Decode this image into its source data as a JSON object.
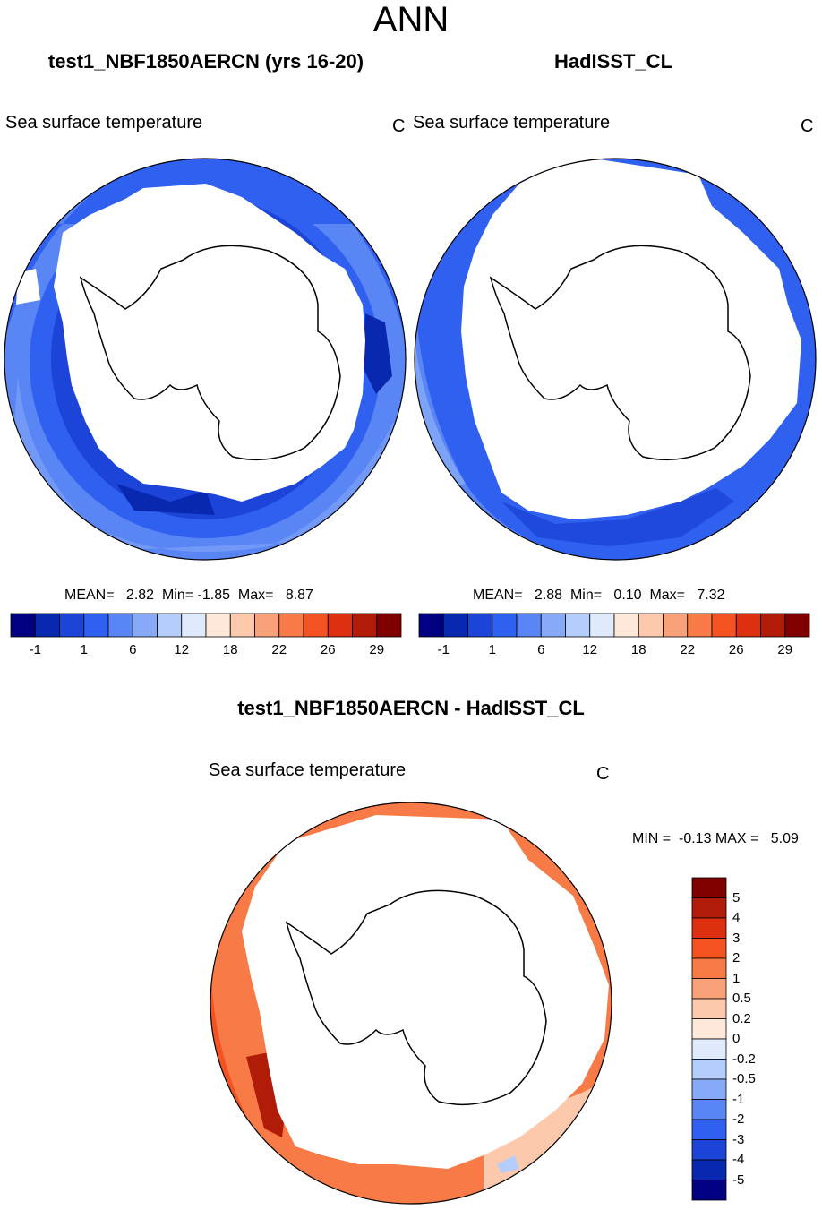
{
  "title": "ANN",
  "panels": [
    {
      "title": "test1_NBF1850AERCN (yrs 16-20)",
      "field": "Sea surface temperature",
      "units": "C",
      "stats": {
        "mean_label": "MEAN=",
        "mean": "2.82",
        "min_label": "Min=",
        "min": "-1.85",
        "max_label": "Max=",
        "max": "8.87"
      }
    },
    {
      "title": "HadISST_CL",
      "field": "Sea surface temperature",
      "units": "C",
      "stats": {
        "mean_label": "MEAN=",
        "mean": "2.88",
        "min_label": "Min=",
        "min": "0.10",
        "max_label": "Max=",
        "max": "7.32"
      }
    }
  ],
  "colorbar_top": {
    "colors": [
      "#000080",
      "#0828b0",
      "#1c44d8",
      "#3060f0",
      "#5a86f5",
      "#86aaf7",
      "#b4cdfa",
      "#dfeafd",
      "#fde8da",
      "#fcc9ad",
      "#f9a279",
      "#f77a47",
      "#f45321",
      "#dc3010",
      "#b01c08",
      "#800000"
    ],
    "ticks": [
      "-1",
      "1",
      "6",
      "12",
      "18",
      "22",
      "26",
      "29"
    ]
  },
  "diff": {
    "title": "test1_NBF1850AERCN - HadISST_CL",
    "field": "Sea surface temperature",
    "units": "C",
    "minmax": "MIN =  -0.13 MAX =   5.09",
    "colorbar": {
      "colors": [
        "#800000",
        "#b01c08",
        "#dc3010",
        "#f45321",
        "#f77a47",
        "#f9a279",
        "#fcc9ad",
        "#fde8da",
        "#dfeafd",
        "#b4cdfa",
        "#86aaf7",
        "#5a86f5",
        "#3060f0",
        "#1c44d8",
        "#0828b0",
        "#000080"
      ],
      "ticks": [
        "5",
        "4",
        "3",
        "2",
        "1",
        "0.5",
        "0.2",
        "0",
        "-0.2",
        "-0.5",
        "-1",
        "-2",
        "-3",
        "-4",
        "-5"
      ]
    }
  },
  "palette": {
    "ice": "#ffffff",
    "deep_blue": "#0828b0",
    "mid_blue": "#1c44d8",
    "blue": "#3060f0",
    "light_blue": "#5a86f5",
    "pale_blue": "#86aaf7",
    "orange": "#f77a47",
    "light_orange": "#f9a279",
    "red_orange": "#f45321",
    "dark_red": "#b01c08",
    "peach": "#fcc9ad"
  }
}
